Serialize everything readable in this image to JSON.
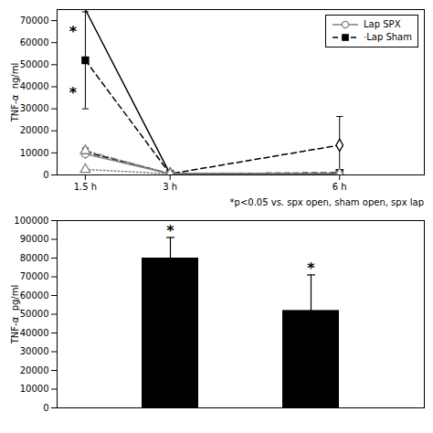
{
  "chart_data": [
    {
      "type": "line",
      "ylabel": "TNF-α  ng/ml",
      "x": [
        1.5,
        3.0,
        6.0
      ],
      "xlim": [
        1.0,
        7.5
      ],
      "xticks": [
        {
          "value": 1.5,
          "label": "1.5 h"
        },
        {
          "value": 3.0,
          "label": "3 h"
        },
        {
          "value": 6.0,
          "label": "6 h"
        }
      ],
      "ylim": [
        0,
        75000
      ],
      "yticks": [
        0,
        10000,
        20000,
        30000,
        40000,
        50000,
        60000,
        70000
      ],
      "legend": "upper right",
      "series": [
        {
          "name": null,
          "color": "black",
          "line_style": "solid",
          "marker": null,
          "values": [
            75000,
            500,
            500
          ]
        },
        {
          "name": "·Lap Sham",
          "color": "black",
          "line_style": "dashed",
          "marker": "filled-square",
          "values": [
            52000,
            500,
            1000
          ],
          "error_low": [
            22000,
            0,
            0
          ],
          "error_high": [
            22000,
            0,
            0
          ]
        },
        {
          "name": null,
          "color": "black",
          "line_style": "dashed",
          "marker": "open-diamond",
          "values": [
            10500,
            500,
            13500
          ],
          "error_low": [
            1500,
            0,
            13000
          ],
          "error_high": [
            1500,
            0,
            13000
          ]
        },
        {
          "name": "Lap SPX",
          "color": "gray",
          "line_style": "solid",
          "marker": "open-circle",
          "values": [
            9500,
            500,
            500
          ],
          "error_low": [
            1000,
            0,
            0
          ],
          "error_high": [
            1000,
            0,
            0
          ]
        },
        {
          "name": null,
          "color": "gray",
          "line_style": "dashdot",
          "marker": "open-triangle",
          "values": [
            11000,
            500,
            500
          ],
          "error_low": [
            1500,
            0,
            0
          ],
          "error_high": [
            1500,
            0,
            0
          ]
        },
        {
          "name": null,
          "color": "gray",
          "line_style": "dotted",
          "marker": "open-triangle",
          "values": [
            2500,
            500,
            500
          ]
        }
      ],
      "annotations": [
        {
          "text": "*",
          "x": 1.28,
          "y": 65000
        },
        {
          "text": "*",
          "x": 1.28,
          "y": 37000
        },
        {
          "text": "*p<0.05 vs. spx open, sham open, spx lap"
        }
      ]
    },
    {
      "type": "bar",
      "ylabel": "TNF-α  pg/ml",
      "categories": [
        null,
        null
      ],
      "values": [
        80000,
        52000
      ],
      "errors": [
        11000,
        19000
      ],
      "color": "black",
      "ylim": [
        0,
        100000
      ],
      "yticks": [
        0,
        10000,
        20000,
        30000,
        40000,
        50000,
        60000,
        70000,
        80000,
        90000,
        100000
      ],
      "tick_labels": "y",
      "annotations": [
        {
          "text": "*",
          "x": 0,
          "y": 92000
        },
        {
          "text": "*",
          "x": 1,
          "y": 72000
        }
      ]
    }
  ]
}
